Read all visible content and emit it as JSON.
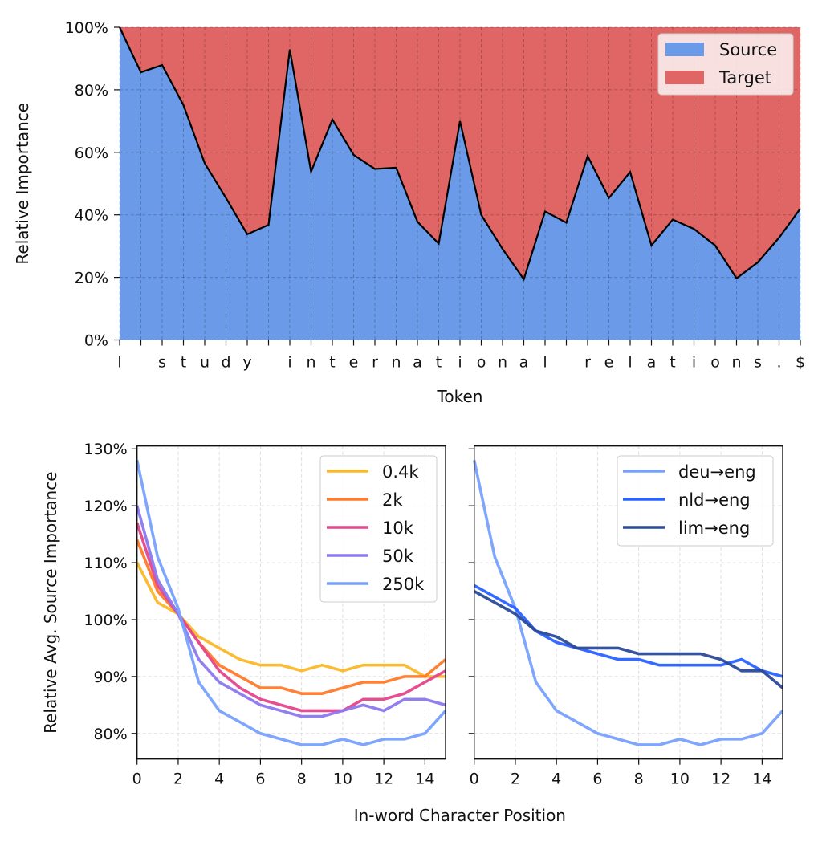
{
  "chart_data": [
    {
      "type": "area",
      "stacked": true,
      "xlabel": "Token",
      "ylabel": "Relative Importance",
      "ylim": [
        0,
        100
      ],
      "yticks": [
        "0%",
        "20%",
        "40%",
        "60%",
        "80%",
        "100%"
      ],
      "grid": true,
      "legend_position": "top-right",
      "categories": [
        "I",
        " ",
        "s",
        "t",
        "u",
        "d",
        "y",
        " ",
        "i",
        "n",
        "t",
        "e",
        "r",
        "n",
        "a",
        "t",
        "i",
        "o",
        "n",
        "a",
        "l",
        " ",
        "r",
        "e",
        "l",
        "a",
        "t",
        "i",
        "o",
        "n",
        "s",
        ".",
        "$"
      ],
      "series": [
        {
          "name": "Source",
          "color": "#6b9be8",
          "values": [
            100,
            85.6,
            87.9,
            75.1,
            56.5,
            45.4,
            33.8,
            36.8,
            92.9,
            53.8,
            70.5,
            59.2,
            54.7,
            55.1,
            37.8,
            30.8,
            70.0,
            40.0,
            29.1,
            19.4,
            41.1,
            37.5,
            58.8,
            45.4,
            53.7,
            30.2,
            38.5,
            35.5,
            30.2,
            19.7,
            24.8,
            32.7,
            42.0
          ]
        },
        {
          "name": "Target",
          "color": "#e06666",
          "values": [
            0,
            14.4,
            12.1,
            24.9,
            43.5,
            54.6,
            66.2,
            63.2,
            7.1,
            46.2,
            29.5,
            40.8,
            45.3,
            44.9,
            62.2,
            69.2,
            30.0,
            60.0,
            70.9,
            80.6,
            58.9,
            62.5,
            41.2,
            54.6,
            46.3,
            69.8,
            61.5,
            64.5,
            69.8,
            80.3,
            75.2,
            67.3,
            58.0
          ]
        }
      ]
    },
    {
      "type": "line",
      "xlabel": "In-word Character Position",
      "ylabel": "Relative Avg. Source Importance",
      "xlim": [
        0,
        15
      ],
      "ylim": [
        75.5,
        130.5
      ],
      "xticks": [
        "0",
        "2",
        "4",
        "6",
        "8",
        "10",
        "12",
        "14"
      ],
      "yticks": [
        "80%",
        "90%",
        "100%",
        "110%",
        "120%",
        "130%"
      ],
      "grid": true,
      "legend_position": "top-right",
      "x": [
        0,
        1,
        2,
        3,
        4,
        5,
        6,
        7,
        8,
        9,
        10,
        11,
        12,
        13,
        14,
        15
      ],
      "series": [
        {
          "name": "0.4k",
          "color": "#fbb829",
          "values": [
            110,
            103,
            101,
            97,
            95,
            93,
            92,
            92,
            91,
            92,
            91,
            92,
            92,
            92,
            90,
            90
          ]
        },
        {
          "name": "2k",
          "color": "#ff7a2b",
          "values": [
            114,
            105,
            101,
            96,
            92,
            90,
            88,
            88,
            87,
            87,
            88,
            89,
            89,
            90,
            90,
            93
          ]
        },
        {
          "name": "10k",
          "color": "#e4468b",
          "values": [
            117,
            106,
            101,
            96,
            91,
            88,
            86,
            85,
            84,
            84,
            84,
            86,
            86,
            87,
            89,
            91
          ]
        },
        {
          "name": "50k",
          "color": "#8c78ee",
          "values": [
            120,
            107,
            101,
            93,
            89,
            87,
            85,
            84,
            83,
            83,
            84,
            85,
            84,
            86,
            86,
            85
          ]
        },
        {
          "name": "250k",
          "color": "#78a1fd",
          "values": [
            128,
            111,
            102,
            89,
            84,
            82,
            80,
            79,
            78,
            78,
            79,
            78,
            79,
            79,
            80,
            84
          ]
        }
      ]
    },
    {
      "type": "line",
      "xlim": [
        0,
        15
      ],
      "ylim": [
        75.5,
        130.5
      ],
      "xticks": [
        "0",
        "2",
        "4",
        "6",
        "8",
        "10",
        "12",
        "14"
      ],
      "grid": true,
      "legend_position": "top-right",
      "x": [
        0,
        1,
        2,
        3,
        4,
        5,
        6,
        7,
        8,
        9,
        10,
        11,
        12,
        13,
        14,
        15
      ],
      "series": [
        {
          "name": "deu→eng",
          "color": "#78a1fd",
          "values": [
            128,
            111,
            102,
            89,
            84,
            82,
            80,
            79,
            78,
            78,
            79,
            78,
            79,
            79,
            80,
            84
          ]
        },
        {
          "name": "nld→eng",
          "color": "#2962ff",
          "values": [
            106,
            104,
            102,
            98,
            96,
            95,
            94,
            93,
            93,
            92,
            92,
            92,
            92,
            93,
            91,
            90
          ]
        },
        {
          "name": "lim→eng",
          "color": "#2b4a98",
          "values": [
            105,
            103,
            101,
            98,
            97,
            95,
            95,
            95,
            94,
            94,
            94,
            94,
            93,
            91,
            91,
            88
          ]
        }
      ]
    }
  ]
}
